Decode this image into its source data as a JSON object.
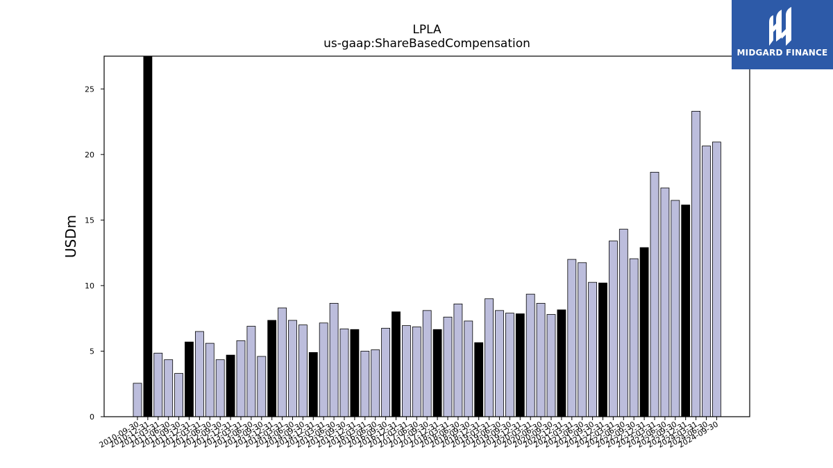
{
  "brand": {
    "name": "MIDGARD FINANCE",
    "background": "#2d5aa8"
  },
  "colors": {
    "bar_default": "#bcbddc",
    "bar_highlight": "#000000",
    "edge": "#000000"
  },
  "chart_data": {
    "type": "bar",
    "title": "LPLA",
    "subtitle": "us-gaap:ShareBasedCompensation",
    "xlabel": "",
    "ylabel": "USDm",
    "ylim": [
      0,
      27.5
    ],
    "yticks": [
      0,
      5,
      10,
      15,
      20,
      25
    ],
    "grid": false,
    "categories": [
      "2010-09-30",
      "2010-12-31",
      "2011-03-31",
      "2011-06-30",
      "2011-09-30",
      "2011-12-31",
      "2012-03-31",
      "2012-06-30",
      "2012-09-30",
      "2012-12-31",
      "2013-03-31",
      "2013-06-30",
      "2013-09-30",
      "2013-12-31",
      "2014-03-31",
      "2014-06-30",
      "2014-09-30",
      "2014-12-31",
      "2015-03-31",
      "2015-06-30",
      "2015-09-30",
      "2015-12-31",
      "2016-03-31",
      "2016-06-30",
      "2016-09-30",
      "2016-12-31",
      "2017-03-31",
      "2017-06-30",
      "2017-09-30",
      "2017-12-31",
      "2018-03-31",
      "2018-06-30",
      "2018-09-30",
      "2018-12-31",
      "2019-03-31",
      "2019-06-30",
      "2019-09-30",
      "2019-12-31",
      "2020-03-31",
      "2020-06-30",
      "2020-09-30",
      "2020-12-31",
      "2021-03-31",
      "2021-06-30",
      "2021-09-30",
      "2021-12-31",
      "2022-03-31",
      "2022-06-30",
      "2022-09-30",
      "2022-12-31",
      "2023-03-31",
      "2023-06-30",
      "2023-09-30",
      "2023-12-31",
      "2024-03-31",
      "2024-06-30",
      "2024-09-30"
    ],
    "values": [
      2.55,
      27.5,
      4.85,
      4.35,
      3.3,
      5.7,
      6.5,
      5.6,
      4.35,
      4.7,
      5.8,
      6.9,
      4.6,
      7.35,
      8.3,
      7.35,
      7.0,
      4.9,
      7.15,
      8.65,
      6.7,
      6.65,
      5.0,
      5.1,
      6.75,
      8.0,
      6.95,
      6.85,
      8.1,
      6.65,
      7.6,
      8.6,
      7.3,
      5.65,
      9.0,
      8.1,
      7.9,
      7.85,
      9.35,
      8.65,
      7.8,
      8.15,
      12.0,
      11.75,
      10.25,
      10.2,
      13.4,
      14.3,
      12.05,
      12.9,
      18.65,
      17.45,
      16.5,
      16.15,
      23.3,
      20.65,
      20.95
    ],
    "highlight": [
      false,
      true,
      false,
      false,
      false,
      true,
      false,
      false,
      false,
      true,
      false,
      false,
      false,
      true,
      false,
      false,
      false,
      true,
      false,
      false,
      false,
      true,
      false,
      false,
      false,
      true,
      false,
      false,
      false,
      true,
      false,
      false,
      false,
      true,
      false,
      false,
      false,
      true,
      false,
      false,
      false,
      true,
      false,
      false,
      false,
      true,
      false,
      false,
      false,
      true,
      false,
      false,
      false,
      true,
      false,
      false,
      false
    ]
  }
}
